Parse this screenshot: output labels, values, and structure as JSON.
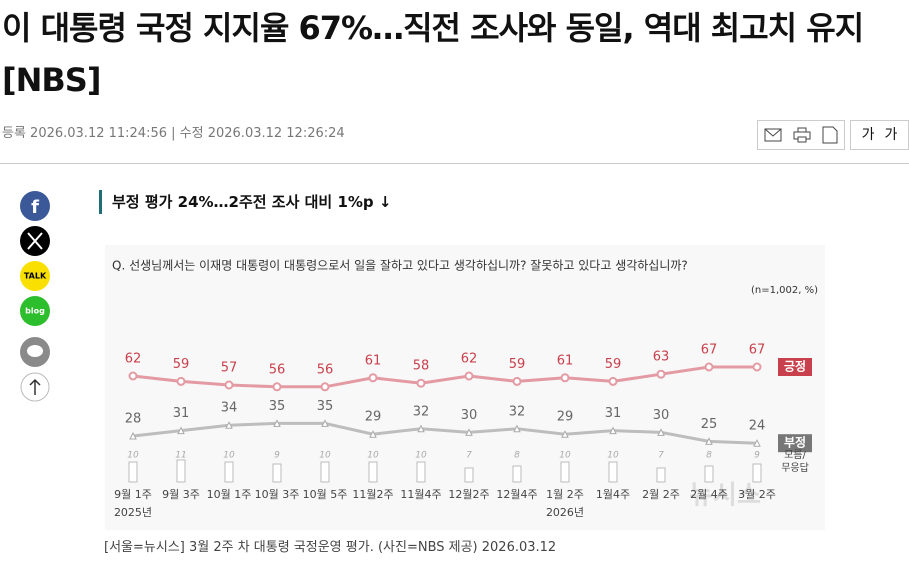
{
  "header": {
    "title": "이 대통령 국정 지지율 67%…직전 조사와 동일, 역대 최고치 유지[NBS]",
    "registered": "등록 2026.03.12 11:24:56",
    "modified": "수정 2026.03.12 12:26:24",
    "font_buttons": [
      "가",
      "가"
    ]
  },
  "social": {
    "kakao": "TALK",
    "blog": "blog"
  },
  "article": {
    "subtitle": "부정 평가 24%…2주전 조사 대비 1%p ↓",
    "chart": {
      "type": "line",
      "question": "Q. 선생님께서는 이재명 대통령이 대통령으로서 일을 잘하고 있다고 생각하십니까? 잘못하고 있다고 생각하십니까?",
      "note": "(n=1,002, %)",
      "watermark": "뉴시스",
      "categories": [
        "9월 1주",
        "9월 3주",
        "10월 1주",
        "10월 3주",
        "10월 5주",
        "11월2주",
        "11월4주",
        "12월2주",
        "12월4주",
        "1월 2주",
        "1월4주",
        "2월 2주",
        "2월 4주",
        "3월 2주"
      ],
      "year_labels": [
        "2025년",
        null,
        null,
        null,
        null,
        null,
        null,
        null,
        null,
        "2026년",
        null,
        null,
        null,
        null
      ],
      "series": [
        {
          "name": "긍정",
          "color": "#c8404c",
          "values": [
            62,
            59,
            57,
            56,
            56,
            61,
            58,
            62,
            59,
            61,
            59,
            63,
            67,
            67
          ]
        },
        {
          "name": "부정",
          "color": "#777777",
          "values": [
            28,
            31,
            34,
            35,
            35,
            29,
            32,
            30,
            32,
            29,
            31,
            30,
            25,
            24
          ]
        },
        {
          "name": [
            "모름/",
            "무응답"
          ],
          "color": "#999999",
          "values": [
            10,
            11,
            10,
            9,
            10,
            10,
            10,
            7,
            8,
            10,
            10,
            7,
            8,
            9
          ]
        }
      ]
    },
    "caption": "[서울=뉴시스] 3월 2주 차 대통령 국정운영 평가. (사진=NBS 제공) 2026.03.12"
  }
}
